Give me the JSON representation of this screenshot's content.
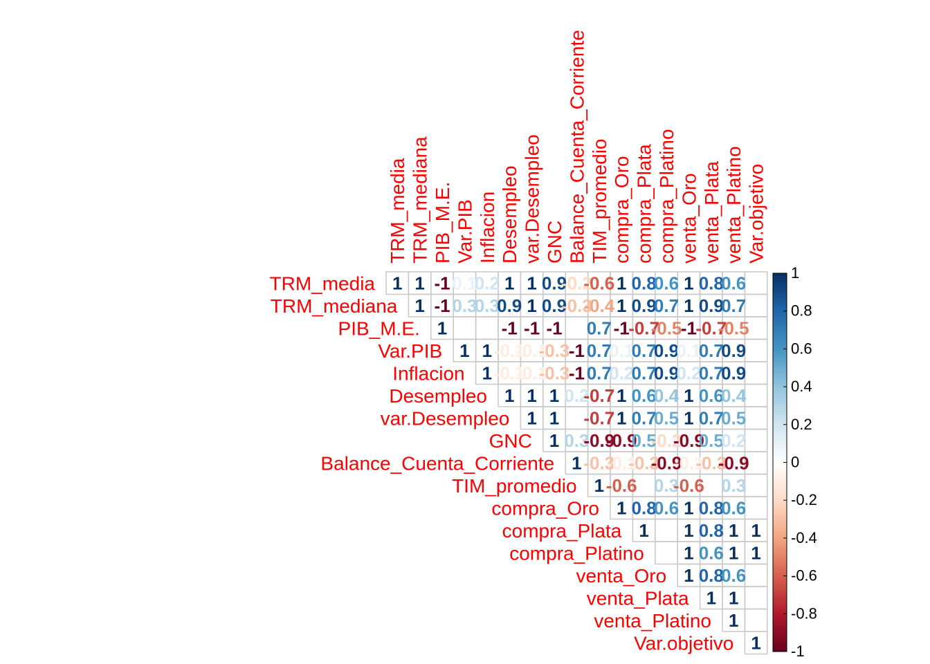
{
  "chart_data": {
    "type": "heatmap",
    "variables": [
      "TRM_media",
      "TRM_mediana",
      "PIB_M.E.",
      "Var.PIB",
      "Inflacion",
      "Desempleo",
      "var.Desempleo",
      "GNC",
      "Balance_Cuenta_Corriente",
      "TIM_promedio",
      "compra_Oro",
      "compra_Plata",
      "compra_Platino",
      "venta_Oro",
      "venta_Plata",
      "venta_Platino",
      "Var.objetivo"
    ],
    "rows": [
      [
        1,
        1,
        -1,
        0.1,
        0.2,
        1,
        1,
        0.9,
        -0.2,
        -0.6,
        1,
        0.8,
        0.6,
        1,
        0.8,
        0.6,
        null
      ],
      [
        1,
        -1,
        0.3,
        0.3,
        0.9,
        1,
        0.9,
        -0.3,
        -0.4,
        1,
        0.9,
        0.7,
        1,
        0.9,
        0.7,
        null
      ],
      [
        1,
        null,
        null,
        -1,
        -1,
        -1,
        null,
        0.7,
        -1,
        -0.7,
        -0.5,
        -1,
        -0.7,
        -0.5
      ],
      [
        1,
        1,
        -0.1,
        -0.1,
        -0.3,
        -1,
        0.7,
        0.1,
        0.7,
        0.9,
        0.1,
        0.7,
        0.9
      ],
      [
        1,
        -0.1,
        -0.1,
        -0.3,
        -1,
        0.7,
        0.2,
        0.7,
        0.9,
        0.2,
        0.7,
        0.9
      ],
      [
        1,
        1,
        1,
        0.2,
        -0.7,
        1,
        0.6,
        0.4,
        1,
        0.6,
        0.4
      ],
      [
        1,
        1,
        null,
        -0.7,
        1,
        0.7,
        0.5,
        1,
        0.7,
        0.5
      ],
      [
        1,
        0.3,
        -0.9,
        -0.9,
        0.5,
        -0.2,
        -0.9,
        0.5,
        0.2
      ],
      [
        1,
        -0.3,
        -0.1,
        -0.3,
        -0.9,
        -0.1,
        -0.3,
        -0.9
      ],
      [
        1,
        -0.6,
        null,
        0.3,
        -0.6,
        null,
        0.3
      ],
      [
        1,
        0.8,
        0.6,
        1,
        0.8,
        0.6
      ],
      [
        1,
        null,
        1,
        0.8,
        1,
        1
      ],
      [
        null,
        1,
        0.6,
        1,
        1
      ],
      [
        1,
        0.8,
        0.6
      ],
      [
        1,
        1
      ],
      [
        1
      ],
      [
        1
      ]
    ],
    "colorbar_ticks": [
      "1",
      "0.8",
      "0.6",
      "0.4",
      "0.2",
      "0",
      "-0.2",
      "-0.4",
      "-0.6",
      "-0.8",
      "-1"
    ],
    "range": [
      -1,
      1
    ],
    "colors": {
      "negative": "#67001f",
      "neutral": "#ffffff",
      "positive": "#053061",
      "labels": "#ff0000",
      "grid": "#c8c8c8"
    }
  }
}
